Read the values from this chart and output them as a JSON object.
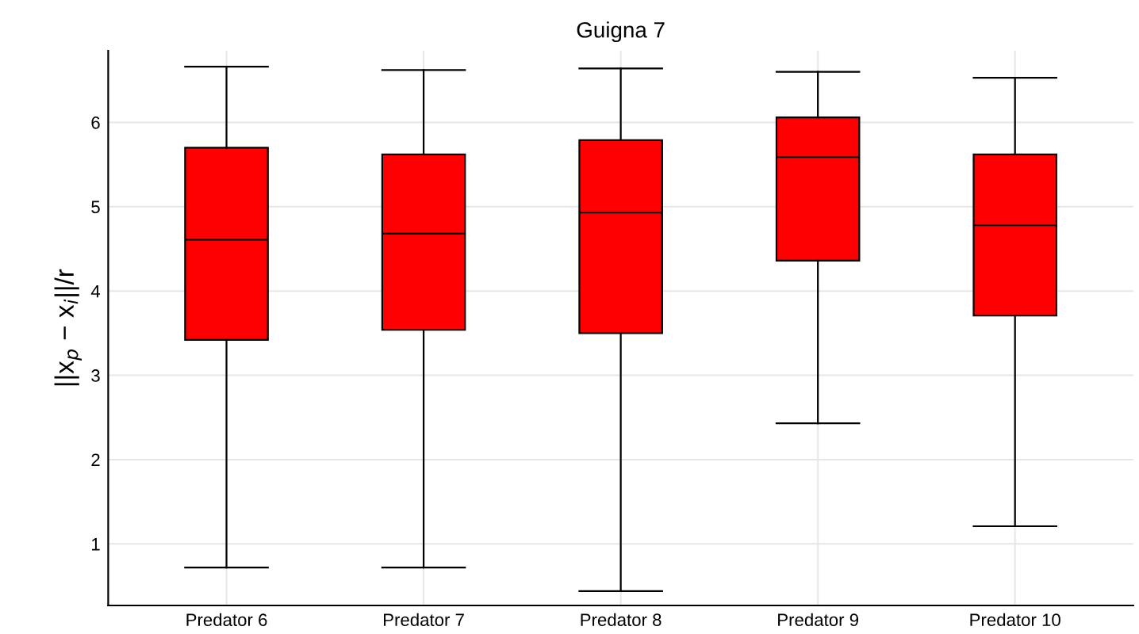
{
  "chart_data": {
    "type": "box",
    "title": "Guigna 7",
    "ylabel": "||x$_{p}$ − x$_{i}$||/r",
    "categories": [
      "Predator 6",
      "Predator 7",
      "Predator 8",
      "Predator 9",
      "Predator 10"
    ],
    "boxes": [
      {
        "low": 0.72,
        "q1": 3.42,
        "median": 4.61,
        "q3": 5.7,
        "high": 6.66
      },
      {
        "low": 0.72,
        "q1": 3.54,
        "median": 4.68,
        "q3": 5.62,
        "high": 6.62
      },
      {
        "low": 0.44,
        "q1": 3.5,
        "median": 4.93,
        "q3": 5.79,
        "high": 6.64
      },
      {
        "low": 2.43,
        "q1": 4.36,
        "median": 5.59,
        "q3": 6.06,
        "high": 6.6
      },
      {
        "low": 1.21,
        "q1": 3.71,
        "median": 4.78,
        "q3": 5.62,
        "high": 6.53
      }
    ],
    "color": "#ff0000",
    "ylim": [
      0.27,
      6.85
    ],
    "yticks": [
      1,
      2,
      3,
      4,
      5,
      6
    ],
    "grid": true
  }
}
